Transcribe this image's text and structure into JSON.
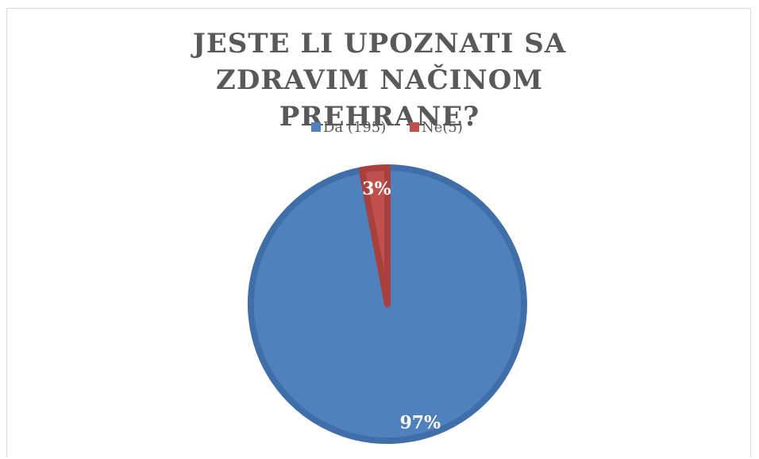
{
  "chart_data": {
    "type": "pie",
    "title": "JESTE LI UPOZNATI SA ZDRAVIM NAČINOM PREHRANE?",
    "categories": [
      "Da (195)",
      "Ne(5)"
    ],
    "values": [
      97,
      3
    ],
    "value_labels": [
      "97%",
      "3%"
    ],
    "colors": [
      "#4f81bd",
      "#c0504d"
    ],
    "legend": "top"
  }
}
